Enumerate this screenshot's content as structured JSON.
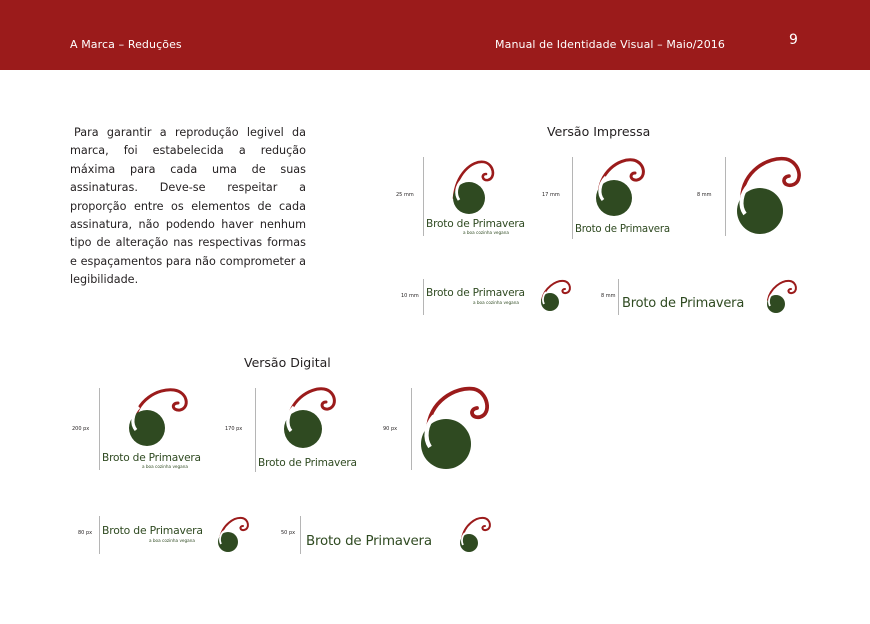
{
  "header": {
    "section": "A Marca – Reduções",
    "manual": "Manual de Identidade Visual – Maio/2016",
    "page_number": "9"
  },
  "intro_text": "Para garantir a reprodução legivel da marca, foi estabelecida a redução máxima para cada uma de suas assinaturas. Deve-se respeitar a proporção entre os elementos de cada assinatura, não podendo haver nenhum tipo de alteração nas respectivas formas e espaçamentos para não comprometer a legibilidade.",
  "print": {
    "title": "Versão Impressa",
    "sizes": [
      "25 mm",
      "17 mm",
      "8 mm",
      "10 mm",
      "8 mm"
    ]
  },
  "digital": {
    "title": "Versão Digital",
    "sizes": [
      "200 px",
      "170 px",
      "90 px",
      "80 px",
      "50 px"
    ]
  },
  "brand": {
    "name": "Broto de Primavera",
    "tagline": "a boa cozinha vegana",
    "colors": {
      "green": "#2f4a21",
      "red": "#9b1b1b"
    }
  }
}
